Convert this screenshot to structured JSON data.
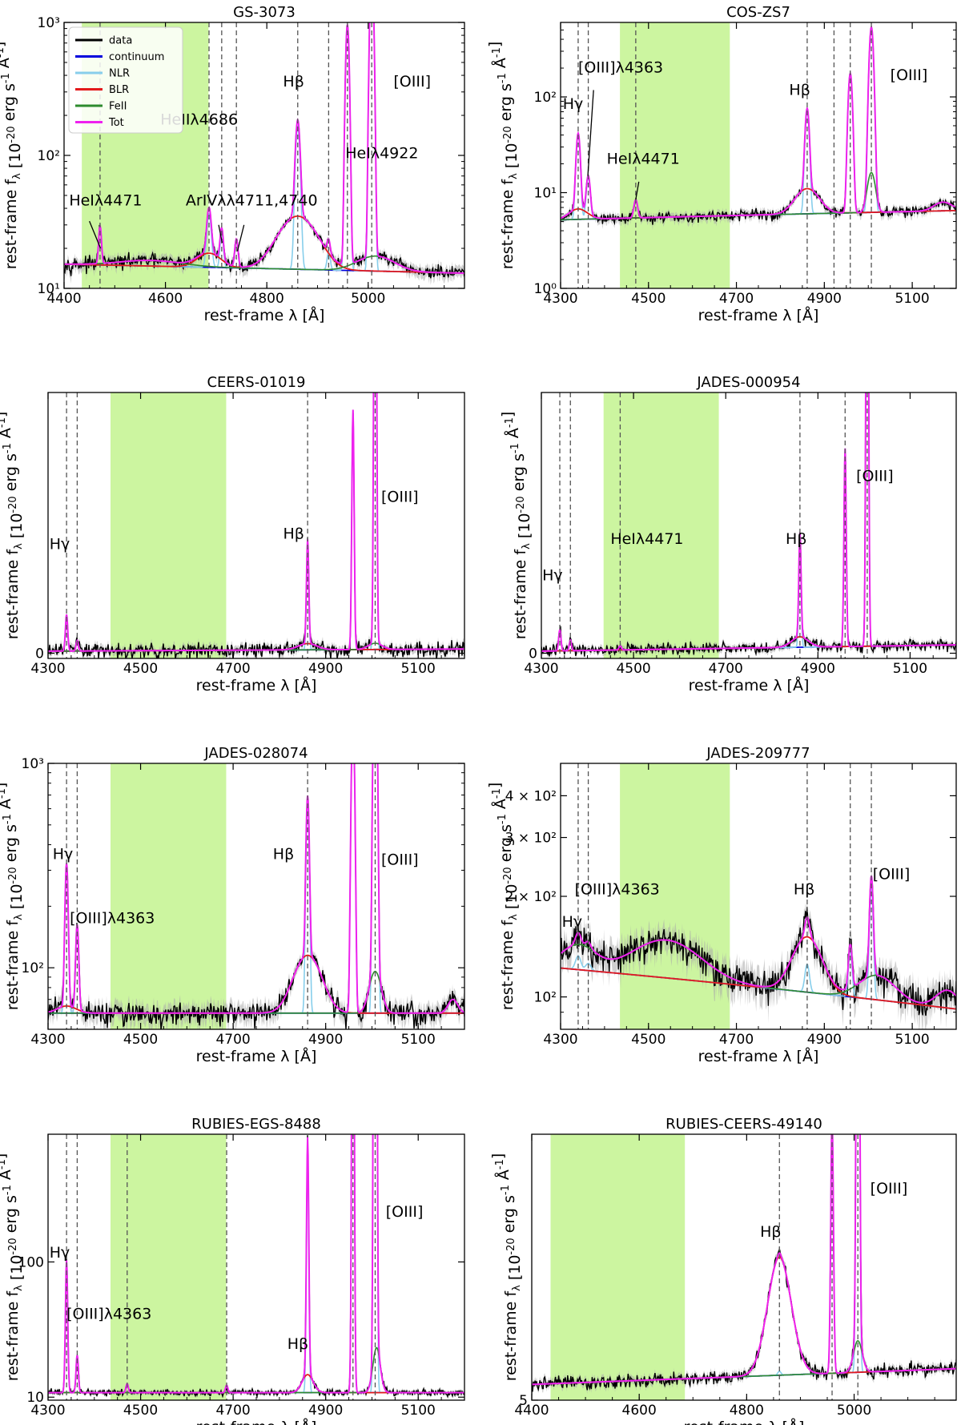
{
  "figure": {
    "legend": [
      {
        "label": "data",
        "color": "#000000"
      },
      {
        "label": "continuum",
        "color": "#0000dd"
      },
      {
        "label": "NLR",
        "color": "#87ceeb"
      },
      {
        "label": "BLR",
        "color": "#e31a1c"
      },
      {
        "label": "FeII",
        "color": "#2e8b2e"
      },
      {
        "label": "Tot",
        "color": "#ee22ee"
      }
    ],
    "colors": {
      "data": "#000000",
      "error_band": "#aaaaaa",
      "continuum": "#0000dd",
      "NLR": "#87ceeb",
      "BLR": "#e31a1c",
      "FeII": "#2e8b2e",
      "Tot": "#ee22ee",
      "shaded_region": "#ccf5a0",
      "reference_line": "#555555"
    }
  },
  "chart_data": [
    {
      "id": "p0",
      "type": "line",
      "title": "GS-3073",
      "xlabel": "rest-frame λ [Å]",
      "ylabel": "rest-frame f_λ [10^-20 erg s^-1 Å^-1]",
      "xlim": [
        4400,
        5190
      ],
      "ylim": [
        10,
        1000
      ],
      "yscale": "log",
      "xticks": [
        {
          "v": 4400,
          "label": "4400"
        },
        {
          "v": 4600,
          "label": "4600"
        },
        {
          "v": 4800,
          "label": "4800"
        },
        {
          "v": 5000,
          "label": "5000"
        }
      ],
      "yticks": [
        {
          "v": 10,
          "label": "10¹"
        },
        {
          "v": 100,
          "label": "10²"
        },
        {
          "v": 1000,
          "label": "10³"
        }
      ],
      "shaded": [
        4435,
        4685
      ],
      "vlines": [
        4471,
        4686,
        4711,
        4740,
        4861,
        4922,
        4959,
        5007
      ],
      "continuum": [
        [
          4400,
          15.2
        ],
        [
          5190,
          13
        ]
      ],
      "lines": [
        {
          "c": 4471,
          "nlr": 14,
          "w": 2.5
        },
        {
          "c": 4686,
          "nlr": 22,
          "blr": 4,
          "bw": 22,
          "w": 4
        },
        {
          "c": 4711,
          "nlr": 12,
          "w": 3
        },
        {
          "c": 4740,
          "nlr": 9,
          "w": 3
        },
        {
          "c": 4861,
          "nlr": 150,
          "blr": 21,
          "bw": 35,
          "w": 4
        },
        {
          "c": 4922,
          "nlr": 5,
          "w": 3
        },
        {
          "c": 4959,
          "nlr": 950,
          "w": 3
        },
        {
          "c": 5007,
          "nlr": 2800,
          "w": 3
        }
      ],
      "feii": [
        {
          "c": 5015,
          "a": 4,
          "s": 35
        },
        {
          "c": 4570,
          "a": 1.5,
          "s": 60
        }
      ],
      "noise": 0.8,
      "annotations": [
        {
          "text": "Hβ",
          "x": 4832,
          "y": 330
        },
        {
          "text": "[OIII]",
          "x": 5050,
          "y": 330
        },
        {
          "text": "HeIIλ4686",
          "x": 4590,
          "y": 170
        },
        {
          "text": "HeIλ4922",
          "x": 4955,
          "y": 95
        },
        {
          "text": "HeIλ4471",
          "x": 4410,
          "y": 42
        },
        {
          "text": "ArIVλλ4711,4740",
          "x": 4640,
          "y": 42
        }
      ],
      "arrows": [
        [
          4450,
          32,
          4472,
          20
        ],
        [
          4705,
          30,
          4712,
          22
        ],
        [
          4755,
          30,
          4742,
          19
        ]
      ],
      "legend": true
    },
    {
      "id": "p1",
      "type": "line",
      "title": "COS-ZS7",
      "xlabel": "rest-frame λ [Å]",
      "ylabel": "rest-frame f_λ [10^-20 erg s^-1 Å^-1]",
      "xlim": [
        4300,
        5200
      ],
      "ylim": [
        1,
        600
      ],
      "yscale": "log",
      "xticks": [
        {
          "v": 4300,
          "label": "4300"
        },
        {
          "v": 4500,
          "label": "4500"
        },
        {
          "v": 4700,
          "label": "4700"
        },
        {
          "v": 4900,
          "label": "4900"
        },
        {
          "v": 5100,
          "label": "5100"
        }
      ],
      "yticks": [
        {
          "v": 1,
          "label": "10⁰"
        },
        {
          "v": 10,
          "label": "10¹"
        },
        {
          "v": 100,
          "label": "10²"
        }
      ],
      "shaded": [
        4435,
        4685
      ],
      "vlines": [
        4340,
        4363,
        4471,
        4861,
        4922,
        4959,
        5007
      ],
      "continuum": [
        [
          4300,
          5.2
        ],
        [
          5200,
          6.5
        ]
      ],
      "lines": [
        {
          "c": 4340,
          "nlr": 35,
          "blr": 1.5,
          "bw": 20,
          "w": 4
        },
        {
          "c": 4363,
          "nlr": 9,
          "w": 4
        },
        {
          "c": 4471,
          "nlr": 3,
          "w": 4
        },
        {
          "c": 4861,
          "nlr": 65,
          "blr": 5,
          "bw": 25,
          "w": 4
        },
        {
          "c": 4959,
          "nlr": 170,
          "w": 4
        },
        {
          "c": 5007,
          "nlr": 520,
          "w": 4
        }
      ],
      "feii": [
        {
          "c": 5007,
          "a": 10,
          "s": 8
        },
        {
          "c": 5170,
          "a": 1.5,
          "s": 20
        }
      ],
      "noise": 1.2,
      "annotations": [
        {
          "text": "Hγ",
          "x": 4305,
          "y": 75
        },
        {
          "text": "[OIII]λ4363",
          "x": 4340,
          "y": 180
        },
        {
          "text": "HeIλ4471",
          "x": 4405,
          "y": 20
        },
        {
          "text": "Hβ",
          "x": 4820,
          "y": 105
        },
        {
          "text": "[OIII]",
          "x": 5050,
          "y": 150
        }
      ],
      "arrows": [
        [
          4375,
          118,
          4362,
          15
        ],
        [
          4478,
          13,
          4471,
          8.5
        ]
      ],
      "legend": false
    },
    {
      "id": "p2",
      "type": "line",
      "title": "CEERS-01019",
      "xlabel": "rest-frame λ [Å]",
      "ylabel": "rest-frame f_λ [10^-20 erg s^-1 Å^-1]",
      "xlim": [
        4300,
        5200
      ],
      "ylim": [
        -1,
        50
      ],
      "yscale": "linear",
      "xticks": [
        {
          "v": 4300,
          "label": "4300"
        },
        {
          "v": 4500,
          "label": "4500"
        },
        {
          "v": 4700,
          "label": "4700"
        },
        {
          "v": 4900,
          "label": "4900"
        },
        {
          "v": 5100,
          "label": "5100"
        }
      ],
      "yticks": [
        {
          "v": 0,
          "label": "0"
        }
      ],
      "shaded": [
        4435,
        4685
      ],
      "vlines": [
        4340,
        4363,
        4861,
        5007
      ],
      "continuum": [
        [
          4300,
          0.4
        ],
        [
          5200,
          0.8
        ]
      ],
      "lines": [
        {
          "c": 4340,
          "nlr": 7,
          "w": 2.5
        },
        {
          "c": 4363,
          "nlr": 2,
          "w": 2.5
        },
        {
          "c": 4861,
          "nlr": 20,
          "blr": 1.2,
          "bw": 20,
          "w": 2.5
        },
        {
          "c": 4959,
          "nlr": 46,
          "w": 2.5
        },
        {
          "c": 5007,
          "nlr": 140,
          "w": 2.5
        }
      ],
      "feii": [
        {
          "c": 5007,
          "a": 1.2,
          "s": 15
        }
      ],
      "noise": 0.9,
      "annotations": [
        {
          "text": "Hγ",
          "x": 4303,
          "y": 20
        },
        {
          "text": "Hβ",
          "x": 4808,
          "y": 22
        },
        {
          "text": "[OIII]",
          "x": 5020,
          "y": 29
        }
      ],
      "arrows": [],
      "legend": false
    },
    {
      "id": "p3",
      "type": "line",
      "title": "JADES-000954",
      "xlabel": "rest-frame λ [Å]",
      "ylabel": "rest-frame f_λ [10^-20 erg s^-1 Å^-1]",
      "xlim": [
        4300,
        5200
      ],
      "ylim": [
        -1,
        50
      ],
      "yscale": "linear",
      "xticks": [
        {
          "v": 4300,
          "label": "4300"
        },
        {
          "v": 4500,
          "label": "4500"
        },
        {
          "v": 4700,
          "label": "4700"
        },
        {
          "v": 4900,
          "label": "4900"
        },
        {
          "v": 5100,
          "label": "5100"
        }
      ],
      "yticks": [
        {
          "v": 0,
          "label": "0"
        }
      ],
      "shaded": [
        4435,
        4685
      ],
      "vlines": [
        4340,
        4363,
        4471,
        4861,
        4959,
        5007
      ],
      "continuum": [
        [
          4300,
          0.4
        ],
        [
          5200,
          1.6
        ]
      ],
      "lines": [
        {
          "c": 4340,
          "nlr": 4,
          "w": 2.5
        },
        {
          "c": 4363,
          "nlr": 2,
          "w": 2.5
        },
        {
          "c": 4471,
          "nlr": 0.8,
          "w": 2.5
        },
        {
          "c": 4861,
          "nlr": 20,
          "blr": 2,
          "bw": 18,
          "w": 2.5
        },
        {
          "c": 4959,
          "nlr": 38,
          "w": 2.5
        },
        {
          "c": 5007,
          "nlr": 120,
          "w": 2.5
        }
      ],
      "feii": [],
      "noise": 0.7,
      "annotations": [
        {
          "text": "Hγ",
          "x": 4302,
          "y": 14
        },
        {
          "text": "HeIλ4471",
          "x": 4450,
          "y": 21
        },
        {
          "text": "Hβ",
          "x": 4830,
          "y": 21
        },
        {
          "text": "[OIII]",
          "x": 4983,
          "y": 33
        }
      ],
      "arrows": [],
      "legend": false
    },
    {
      "id": "p4",
      "type": "line",
      "title": "JADES-028074",
      "xlabel": "rest-frame λ [Å]",
      "ylabel": "rest-frame f_λ [10^-20 erg s^-1 Å^-1]",
      "xlim": [
        4300,
        5200
      ],
      "ylim": [
        50,
        1000
      ],
      "yscale": "log",
      "xticks": [
        {
          "v": 4300,
          "label": "4300"
        },
        {
          "v": 4500,
          "label": "4500"
        },
        {
          "v": 4700,
          "label": "4700"
        },
        {
          "v": 4900,
          "label": "4900"
        },
        {
          "v": 5100,
          "label": "5100"
        }
      ],
      "yticks": [
        {
          "v": 100,
          "label": "10²"
        },
        {
          "v": 1000,
          "label": "10³"
        }
      ],
      "shaded": [
        4435,
        4685
      ],
      "vlines": [
        4340,
        4363,
        4861,
        5007
      ],
      "continuum": [
        [
          4300,
          60
        ],
        [
          5200,
          60
        ]
      ],
      "lines": [
        {
          "c": 4340,
          "nlr": 260,
          "blr": 5,
          "bw": 20,
          "w": 3
        },
        {
          "c": 4363,
          "nlr": 100,
          "w": 3
        },
        {
          "c": 4861,
          "nlr": 580,
          "blr": 55,
          "bw": 28,
          "w": 3
        },
        {
          "c": 4959,
          "nlr": 1600,
          "w": 3
        },
        {
          "c": 5007,
          "nlr": 4800,
          "w": 3
        }
      ],
      "feii": [
        {
          "c": 5007,
          "a": 36,
          "s": 12
        },
        {
          "c": 5175,
          "a": 10,
          "s": 10
        }
      ],
      "noise": 4,
      "annotations": [
        {
          "text": "Hγ",
          "x": 4310,
          "y": 340
        },
        {
          "text": "[OIII]λ4363",
          "x": 4347,
          "y": 165
        },
        {
          "text": "Hβ",
          "x": 4786,
          "y": 340
        },
        {
          "text": "[OIII]",
          "x": 5020,
          "y": 320
        }
      ],
      "arrows": [],
      "legend": false
    },
    {
      "id": "p5",
      "type": "line",
      "title": "JADES-209777",
      "xlabel": "rest-frame λ [Å]",
      "ylabel": "rest-frame f_λ [10^-20 erg s^-1 Å^-1]",
      "xlim": [
        4300,
        5200
      ],
      "ylim": [
        80,
        500
      ],
      "yscale": "log",
      "xticks": [
        {
          "v": 4300,
          "label": "4300"
        },
        {
          "v": 4500,
          "label": "4500"
        },
        {
          "v": 4700,
          "label": "4700"
        },
        {
          "v": 4900,
          "label": "4900"
        },
        {
          "v": 5100,
          "label": "5100"
        }
      ],
      "yticks": [
        {
          "v": 100,
          "label": "10²"
        },
        {
          "v": 200,
          "label": "2 × 10²"
        },
        {
          "v": 300,
          "label": "3 × 10²"
        },
        {
          "v": 400,
          "label": "4 × 10²"
        }
      ],
      "shaded": [
        4435,
        4685
      ],
      "vlines": [
        4340,
        4363,
        4861,
        4959,
        5007
      ],
      "continuum": [
        [
          4300,
          122
        ],
        [
          5200,
          92
        ]
      ],
      "lines": [
        {
          "c": 4340,
          "nlr": 12,
          "w": 6
        },
        {
          "c": 4363,
          "nlr": 6,
          "w": 6
        },
        {
          "c": 4861,
          "nlr": 22,
          "blr": 48,
          "bw": 32,
          "w": 5
        },
        {
          "c": 4959,
          "nlr": 38,
          "w": 4
        },
        {
          "c": 5007,
          "nlr": 115,
          "w": 4
        }
      ],
      "feii": [
        {
          "c": 4340,
          "a": 22,
          "s": 38
        },
        {
          "c": 4540,
          "a": 34,
          "s": 75
        },
        {
          "c": 5020,
          "a": 18,
          "s": 40
        },
        {
          "c": 5180,
          "a": 12,
          "s": 25
        }
      ],
      "noise": 3,
      "annotations": [
        {
          "text": "Hγ",
          "x": 4303,
          "y": 162
        },
        {
          "text": "[OIII]λ4363",
          "x": 4332,
          "y": 203
        },
        {
          "text": "Hβ",
          "x": 4830,
          "y": 203
        },
        {
          "text": "[OIII]",
          "x": 5010,
          "y": 225
        }
      ],
      "arrows": [],
      "legend": false
    },
    {
      "id": "p6",
      "type": "line",
      "title": "RUBIES-EGS-8488",
      "xlabel": "rest-frame λ [Å]",
      "ylabel": "rest-frame f_λ [10^-20 erg s^-1 Å^-1]",
      "xlim": [
        4300,
        5200
      ],
      "ylim": [
        8,
        185
      ],
      "yscale": "linear",
      "xticks": [
        {
          "v": 4300,
          "label": "4300"
        },
        {
          "v": 4500,
          "label": "4500"
        },
        {
          "v": 4700,
          "label": "4700"
        },
        {
          "v": 4900,
          "label": "4900"
        },
        {
          "v": 5100,
          "label": "5100"
        }
      ],
      "yticks": [
        {
          "v": 10,
          "label": "10"
        },
        {
          "v": 100,
          "label": "100"
        }
      ],
      "shaded": [
        4435,
        4685
      ],
      "vlines": [
        4340,
        4363,
        4471,
        4686,
        4959,
        5007
      ],
      "continuum": [
        [
          4300,
          13
        ],
        [
          5200,
          13
        ]
      ],
      "lines": [
        {
          "c": 4340,
          "nlr": 88,
          "w": 2.5
        },
        {
          "c": 4363,
          "nlr": 25,
          "w": 2.5
        },
        {
          "c": 4471,
          "nlr": 6,
          "w": 2.5
        },
        {
          "c": 4686,
          "nlr": 5,
          "w": 2.5
        },
        {
          "c": 4861,
          "nlr": 158,
          "blr": 12,
          "bw": 12,
          "w": 2.5
        },
        {
          "c": 4959,
          "nlr": 400,
          "w": 2.5
        },
        {
          "c": 5007,
          "nlr": 1100,
          "w": 2.5
        }
      ],
      "feii": [
        {
          "c": 5010,
          "a": 30,
          "s": 8
        }
      ],
      "noise": 1.5,
      "annotations": [
        {
          "text": "Hγ",
          "x": 4303,
          "y": 103
        },
        {
          "text": "[OIII]λ4363",
          "x": 4340,
          "y": 62
        },
        {
          "text": "Hβ",
          "x": 4817,
          "y": 42
        },
        {
          "text": "[OIII]",
          "x": 5030,
          "y": 130
        }
      ],
      "arrows": [],
      "legend": false
    },
    {
      "id": "p7",
      "type": "line",
      "title": "RUBIES-CEERS-49140",
      "xlabel": "rest-frame λ [Å]",
      "ylabel": "rest-frame f_λ [10^-20 erg s^-1 Å^-1]",
      "xlim": [
        4400,
        5190
      ],
      "ylim": [
        5,
        140
      ],
      "yscale": "linear",
      "xticks": [
        {
          "v": 4400,
          "label": "4400"
        },
        {
          "v": 4600,
          "label": "4600"
        },
        {
          "v": 4800,
          "label": "4800"
        },
        {
          "v": 5000,
          "label": "5000"
        }
      ],
      "yticks": [
        {
          "v": 5,
          "label": "5"
        }
      ],
      "shaded": [
        4435,
        4685
      ],
      "vlines": [
        4861,
        4959,
        5007
      ],
      "continuum": [
        [
          4400,
          13
        ],
        [
          5190,
          21
        ]
      ],
      "lines": [
        {
          "c": 4861,
          "nlr": 2,
          "blr": 60,
          "bw": 22,
          "w": 3
        },
        {
          "c": 4959,
          "nlr": 130,
          "w": 2.5
        },
        {
          "c": 5007,
          "nlr": 400,
          "w": 2.5
        }
      ],
      "feii": [
        {
          "c": 5007,
          "a": 16,
          "s": 8
        }
      ],
      "noise": 2.2,
      "annotations": [
        {
          "text": "Hβ",
          "x": 4825,
          "y": 88
        },
        {
          "text": "[OIII]",
          "x": 5030,
          "y": 110
        }
      ],
      "arrows": [],
      "legend": false
    }
  ]
}
